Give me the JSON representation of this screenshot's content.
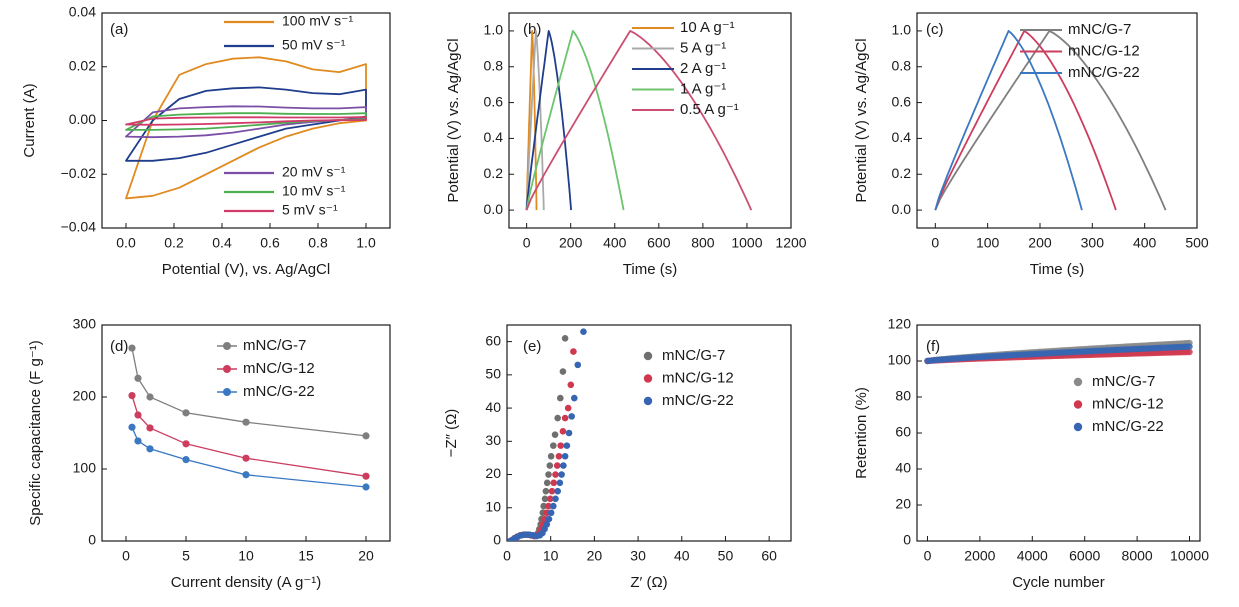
{
  "chart_data": [
    {
      "panel": "(a)",
      "type": "line",
      "xlabel": "Potential (V), vs. Ag/AgCl",
      "ylabel": "Current (A)",
      "xlim": [
        -0.1,
        1.1
      ],
      "ylim": [
        -0.04,
        0.04
      ],
      "xticks": [
        0.0,
        0.2,
        0.4,
        0.6,
        0.8,
        1.0
      ],
      "xtick_labels": [
        "0.0",
        "0.2",
        "0.4",
        "0.6",
        "0.8",
        "1.0"
      ],
      "yticks": [
        -0.04,
        -0.02,
        0.0,
        0.02,
        0.04
      ],
      "ytick_labels": [
        "−0.04",
        "−0.02",
        "0.00",
        "0.02",
        "0.04"
      ],
      "series": [
        {
          "name": "100 mV s⁻¹",
          "color": "#e08a1f",
          "vmin": 0.0,
          "vmax": 1.0,
          "upper": [
            -0.029,
            0.0,
            0.017,
            0.021,
            0.023,
            0.0235,
            0.022,
            0.019,
            0.018,
            0.021
          ],
          "lower": [
            -0.029,
            -0.028,
            -0.025,
            -0.02,
            -0.015,
            -0.01,
            -0.006,
            -0.003,
            -0.001,
            0.0
          ]
        },
        {
          "name": "50 mV s⁻¹",
          "color": "#1f3d8c",
          "vmin": 0.0,
          "vmax": 1.0,
          "upper": [
            -0.015,
            0.0,
            0.008,
            0.011,
            0.012,
            0.0123,
            0.0115,
            0.0102,
            0.0098,
            0.0115
          ],
          "lower": [
            -0.015,
            -0.015,
            -0.014,
            -0.012,
            -0.009,
            -0.006,
            -0.003,
            -0.0015,
            0.0,
            0.0015
          ]
        },
        {
          "name": "20 mV s⁻¹",
          "color": "#7b4fa8",
          "vmin": 0.0,
          "vmax": 1.0,
          "upper": [
            -0.006,
            0.003,
            0.0045,
            0.005,
            0.0053,
            0.0052,
            0.0048,
            0.0045,
            0.0045,
            0.005
          ],
          "lower": [
            -0.006,
            -0.0062,
            -0.006,
            -0.0055,
            -0.0045,
            -0.003,
            -0.0015,
            -0.0005,
            0.0002,
            0.0008
          ]
        },
        {
          "name": "10 mV s⁻¹",
          "color": "#4cb050",
          "vmin": 0.0,
          "vmax": 1.0,
          "upper": [
            -0.0035,
            0.0015,
            0.0022,
            0.0025,
            0.0027,
            0.0027,
            0.0025,
            0.0024,
            0.0024,
            0.0027
          ],
          "lower": [
            -0.0035,
            -0.0035,
            -0.0033,
            -0.003,
            -0.0024,
            -0.0016,
            -0.0008,
            -0.0002,
            0.0002,
            0.0005
          ]
        },
        {
          "name": "5 mV s⁻¹",
          "color": "#d13b6a",
          "vmin": 0.0,
          "vmax": 1.0,
          "upper": [
            -0.0015,
            0.0007,
            0.001,
            0.0011,
            0.0012,
            0.0012,
            0.0011,
            0.0011,
            0.0011,
            0.0013
          ],
          "lower": [
            -0.0015,
            -0.0016,
            -0.0015,
            -0.0013,
            -0.001,
            -0.0007,
            -0.0003,
            0.0,
            0.0001,
            0.0002
          ]
        }
      ]
    },
    {
      "panel": "(b)",
      "type": "line",
      "xlabel": "Time (s)",
      "ylabel": "Potential (V) vs. Ag/AgCl",
      "xlim": [
        -80,
        1200
      ],
      "ylim": [
        -0.1,
        1.1
      ],
      "xticks": [
        0,
        200,
        400,
        600,
        800,
        1000,
        1200
      ],
      "xtick_labels": [
        "0",
        "200",
        "400",
        "600",
        "800",
        "1000",
        "1200"
      ],
      "yticks": [
        0.0,
        0.2,
        0.4,
        0.6,
        0.8,
        1.0
      ],
      "ytick_labels": [
        "0.0",
        "0.2",
        "0.4",
        "0.6",
        "0.8",
        "1.0"
      ],
      "series": [
        {
          "name": "10 A g⁻¹",
          "color": "#e08a1f",
          "peak": 25,
          "end": 45
        },
        {
          "name": "5 A g⁻¹",
          "color": "#a9a9a9",
          "peak": 42,
          "end": 78
        },
        {
          "name": "2 A g⁻¹",
          "color": "#1f3d8c",
          "peak": 100,
          "end": 202
        },
        {
          "name": "1 A g⁻¹",
          "color": "#6cc46e",
          "peak": 210,
          "end": 440
        },
        {
          "name": "0.5 A g⁻¹",
          "color": "#cc4f72",
          "peak": 470,
          "end": 1020
        }
      ]
    },
    {
      "panel": "(c)",
      "type": "line",
      "xlabel": "Time (s)",
      "ylabel": "Potential (V) vs. Ag/AgCl",
      "xlim": [
        -35,
        500
      ],
      "ylim": [
        -0.1,
        1.1
      ],
      "xticks": [
        0,
        100,
        200,
        300,
        400,
        500
      ],
      "xtick_labels": [
        "0",
        "100",
        "200",
        "300",
        "400",
        "500"
      ],
      "yticks": [
        0.0,
        0.2,
        0.4,
        0.6,
        0.8,
        1.0
      ],
      "ytick_labels": [
        "0.0",
        "0.2",
        "0.4",
        "0.6",
        "0.8",
        "1.0"
      ],
      "series": [
        {
          "name": "mNC/G-7",
          "color": "#7f7f7f",
          "peak": 218,
          "end": 440
        },
        {
          "name": "mNC/G-12",
          "color": "#cc3d5e",
          "peak": 170,
          "end": 345
        },
        {
          "name": "mNC/G-22",
          "color": "#3a78c2",
          "peak": 140,
          "end": 280
        }
      ]
    },
    {
      "panel": "(d)",
      "type": "line",
      "xlabel": "Current density (A g⁻¹)",
      "ylabel": "Specific capacitance (F g⁻¹)",
      "xlim": [
        -2,
        22
      ],
      "ylim": [
        0,
        300
      ],
      "xticks": [
        0,
        5,
        10,
        15,
        20
      ],
      "xtick_labels": [
        "0",
        "5",
        "10",
        "15",
        "20"
      ],
      "yticks": [
        0,
        100,
        200,
        300
      ],
      "ytick_labels": [
        "0",
        "100",
        "200",
        "300"
      ],
      "x": [
        0.5,
        1,
        2,
        5,
        10,
        20
      ],
      "series": [
        {
          "name": "mNC/G-7",
          "color": "#7f7f7f",
          "values": [
            268,
            226,
            200,
            178,
            165,
            146
          ]
        },
        {
          "name": "mNC/G-12",
          "color": "#cc3d5e",
          "values": [
            202,
            175,
            157,
            135,
            115,
            90
          ]
        },
        {
          "name": "mNC/G-22",
          "color": "#3a78c2",
          "values": [
            158,
            139,
            128,
            113,
            92,
            75
          ]
        }
      ]
    },
    {
      "panel": "(e)",
      "type": "scatter",
      "xlabel": "Z′ (Ω)",
      "ylabel": "−Z″ (Ω)",
      "xlim": [
        0,
        65
      ],
      "ylim": [
        0,
        65
      ],
      "xticks": [
        0,
        10,
        20,
        30,
        40,
        50,
        60
      ],
      "xtick_labels": [
        "0",
        "10",
        "20",
        "30",
        "40",
        "50",
        "60"
      ],
      "yticks": [
        0,
        10,
        20,
        30,
        40,
        50,
        60
      ],
      "ytick_labels": [
        "0",
        "10",
        "20",
        "30",
        "40",
        "50",
        "60"
      ],
      "series": [
        {
          "name": "mNC/G-7",
          "color": "#6f6f6f",
          "points": [
            [
              0.8,
              0
            ],
            [
              1.2,
              0.3
            ],
            [
              1.7,
              0.8
            ],
            [
              2.3,
              1.3
            ],
            [
              3,
              1.7
            ],
            [
              3.8,
              1.9
            ],
            [
              4.6,
              1.9
            ],
            [
              5.4,
              1.7
            ],
            [
              6.1,
              1.5
            ],
            [
              6.7,
              1.7
            ],
            [
              7.1,
              2.4
            ],
            [
              7.4,
              3.6
            ],
            [
              7.7,
              5
            ],
            [
              7.9,
              6.6
            ],
            [
              8.2,
              8.5
            ],
            [
              8.4,
              10.5
            ],
            [
              8.7,
              12.7
            ],
            [
              8.9,
              15
            ],
            [
              9.2,
              17.5
            ],
            [
              9.5,
              20
            ],
            [
              9.8,
              22.7
            ],
            [
              10.1,
              25.5
            ],
            [
              10.6,
              28.7
            ],
            [
              11,
              32
            ],
            [
              11.6,
              37
            ],
            [
              12.2,
              43
            ],
            [
              12.8,
              51
            ],
            [
              13.3,
              61
            ]
          ]
        },
        {
          "name": "mNC/G-12",
          "color": "#d0384f",
          "points": [
            [
              0.8,
              0
            ],
            [
              1.2,
              0.3
            ],
            [
              1.7,
              0.8
            ],
            [
              2.4,
              1.3
            ],
            [
              3.2,
              1.7
            ],
            [
              4,
              1.9
            ],
            [
              4.8,
              1.9
            ],
            [
              5.6,
              1.7
            ],
            [
              6.4,
              1.5
            ],
            [
              7,
              1.7
            ],
            [
              7.5,
              2.4
            ],
            [
              7.9,
              3.6
            ],
            [
              8.3,
              5
            ],
            [
              8.7,
              6.6
            ],
            [
              9.1,
              8.5
            ],
            [
              9.5,
              10.5
            ],
            [
              9.9,
              12.7
            ],
            [
              10.3,
              15
            ],
            [
              10.7,
              17.5
            ],
            [
              11.1,
              20
            ],
            [
              11.5,
              22.7
            ],
            [
              11.9,
              25.5
            ],
            [
              12.3,
              28.7
            ],
            [
              12.8,
              33
            ],
            [
              13.3,
              37
            ],
            [
              14,
              40
            ],
            [
              14.6,
              47
            ],
            [
              15.2,
              57
            ]
          ]
        },
        {
          "name": "mNC/G-22",
          "color": "#3666b3",
          "points": [
            [
              0.8,
              0
            ],
            [
              1.3,
              0.3
            ],
            [
              1.8,
              0.8
            ],
            [
              2.5,
              1.3
            ],
            [
              3.3,
              1.7
            ],
            [
              4.2,
              1.9
            ],
            [
              5.1,
              1.9
            ],
            [
              6,
              1.7
            ],
            [
              6.8,
              1.5
            ],
            [
              7.5,
              1.7
            ],
            [
              8.1,
              2.4
            ],
            [
              8.6,
              3.6
            ],
            [
              9.1,
              5
            ],
            [
              9.6,
              6.6
            ],
            [
              10.1,
              8.5
            ],
            [
              10.6,
              10.5
            ],
            [
              11.1,
              12.7
            ],
            [
              11.6,
              15
            ],
            [
              12.1,
              17.5
            ],
            [
              12.5,
              20
            ],
            [
              12.9,
              22.7
            ],
            [
              13.3,
              25.5
            ],
            [
              13.7,
              28.7
            ],
            [
              14.2,
              32.5
            ],
            [
              14.8,
              37.5
            ],
            [
              15.4,
              43
            ],
            [
              16.2,
              53
            ],
            [
              17.5,
              63
            ]
          ]
        }
      ]
    },
    {
      "panel": "(f)",
      "type": "scatter",
      "xlabel": "Cycle number",
      "ylabel": "Retention (%)",
      "xlim": [
        -400,
        10400
      ],
      "ylim": [
        0,
        120
      ],
      "xticks": [
        0,
        2000,
        4000,
        6000,
        8000,
        10000
      ],
      "xtick_labels": [
        "0",
        "2000",
        "4000",
        "6000",
        "8000",
        "10000"
      ],
      "yticks": [
        0,
        20,
        40,
        60,
        80,
        100,
        120
      ],
      "ytick_labels": [
        "0",
        "20",
        "40",
        "60",
        "80",
        "100",
        "120"
      ],
      "series": [
        {
          "name": "mNC/G-7",
          "color": "#8a8a8a",
          "start": 100,
          "end": 110
        },
        {
          "name": "mNC/G-12",
          "color": "#d0384f",
          "start": 100,
          "end": 105
        },
        {
          "name": "mNC/G-22",
          "color": "#3666b3",
          "start": 100,
          "end": 108
        }
      ]
    }
  ]
}
